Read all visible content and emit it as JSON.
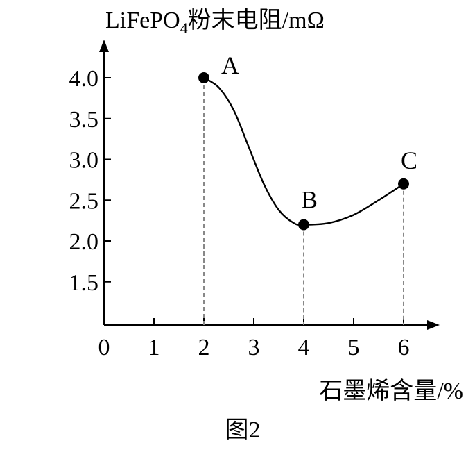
{
  "chart_data": {
    "type": "line",
    "ylabel_main": "LiFePO",
    "ylabel_sub": "4",
    "ylabel_rest": "粉末电阻/mΩ",
    "xlabel": "石墨烯含量/%",
    "caption": "图2",
    "x_ticks": [
      "0",
      "1",
      "2",
      "3",
      "4",
      "5",
      "6"
    ],
    "y_ticks": [
      "1.5",
      "2.0",
      "2.5",
      "3.0",
      "3.5",
      "4.0"
    ],
    "xlim": [
      0,
      6.6
    ],
    "ylim": [
      1.5,
      4.5
    ],
    "points": [
      {
        "label": "A",
        "x": 2,
        "y": 4.0
      },
      {
        "label": "B",
        "x": 4,
        "y": 2.2
      },
      {
        "label": "C",
        "x": 6,
        "y": 2.7
      }
    ],
    "curve_through": [
      [
        2,
        4.0
      ],
      [
        2.3,
        3.88
      ],
      [
        2.6,
        3.6
      ],
      [
        2.9,
        3.15
      ],
      [
        3.2,
        2.7
      ],
      [
        3.5,
        2.38
      ],
      [
        3.8,
        2.22
      ],
      [
        4.0,
        2.2
      ],
      [
        4.5,
        2.22
      ],
      [
        5.0,
        2.32
      ],
      [
        5.5,
        2.5
      ],
      [
        6.0,
        2.7
      ]
    ],
    "dashed_droplines": true,
    "grid": false
  }
}
